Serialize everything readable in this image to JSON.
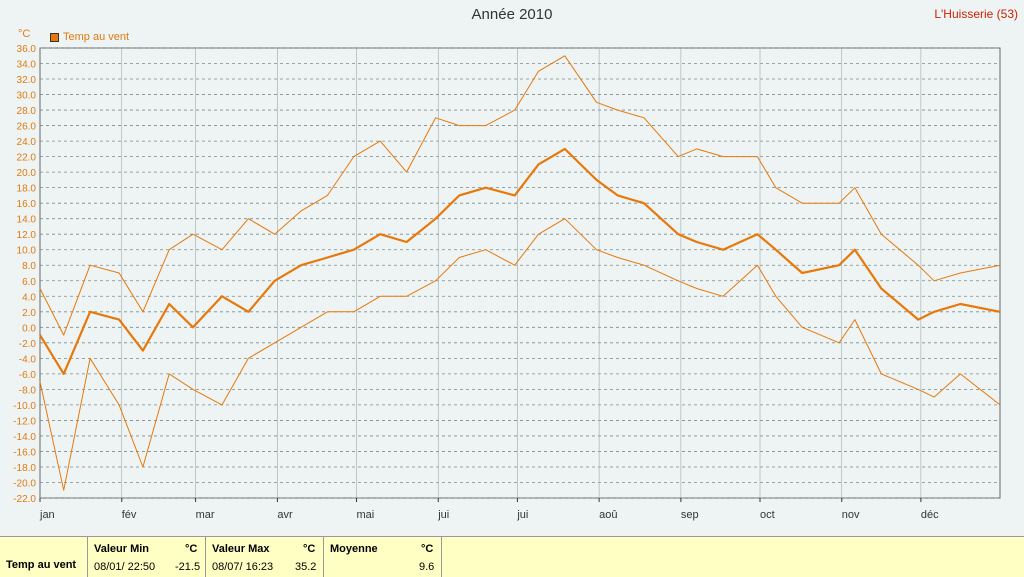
{
  "header": {
    "title": "Année 2010",
    "station": "L'Huisserie (53)",
    "unit": "°C"
  },
  "legend": {
    "label": "Temp au vent",
    "color": "#e8780a"
  },
  "chart_data": {
    "type": "line",
    "title": "Année 2010",
    "ylabel": "°C",
    "ylim": [
      -22,
      36
    ],
    "yticks": [
      "36.0",
      "34.0",
      "32.0",
      "30.0",
      "28.0",
      "26.0",
      "24.0",
      "22.0",
      "20.0",
      "18.0",
      "16.0",
      "14.0",
      "12.0",
      "10.0",
      "8.0",
      "6.0",
      "4.0",
      "2.0",
      "0.0",
      "-2.0",
      "-4.0",
      "-6.0",
      "-8.0",
      "-10.0",
      "-12.0",
      "-14.0",
      "-16.0",
      "-18.0",
      "-20.0",
      "-22.0"
    ],
    "months": [
      "jan",
      "fév",
      "mar",
      "avr",
      "mai",
      "jui",
      "jui",
      "aoû",
      "sep",
      "oct",
      "nov",
      "déc"
    ],
    "x_unit": "day of year",
    "xlim": [
      1,
      365
    ],
    "grid": true,
    "legend_position": "top-left",
    "series_mean": {
      "name": "Temp au vent",
      "x": [
        1,
        10,
        20,
        31,
        40,
        50,
        59,
        70,
        80,
        90,
        100,
        110,
        120,
        130,
        140,
        151,
        160,
        170,
        181,
        190,
        200,
        212,
        220,
        230,
        243,
        250,
        260,
        273,
        280,
        290,
        304,
        310,
        320,
        334,
        340,
        350,
        365
      ],
      "values": [
        -1,
        -6,
        2,
        1,
        -3,
        3,
        0,
        4,
        2,
        6,
        8,
        9,
        10,
        12,
        11,
        14,
        17,
        18,
        17,
        21,
        23,
        19,
        17,
        16,
        12,
        11,
        10,
        12,
        10,
        7,
        8,
        10,
        5,
        1,
        2,
        3,
        2
      ]
    },
    "series_max": {
      "name": "",
      "x": [
        1,
        10,
        20,
        31,
        40,
        50,
        59,
        70,
        80,
        90,
        100,
        110,
        120,
        130,
        140,
        151,
        160,
        170,
        181,
        190,
        200,
        212,
        220,
        230,
        243,
        250,
        260,
        273,
        280,
        290,
        304,
        310,
        320,
        334,
        340,
        350,
        365
      ],
      "values": [
        5,
        -1,
        8,
        7,
        2,
        10,
        12,
        10,
        14,
        12,
        15,
        17,
        22,
        24,
        20,
        27,
        26,
        26,
        28,
        33,
        35,
        29,
        28,
        27,
        22,
        23,
        22,
        22,
        18,
        16,
        16,
        18,
        12,
        8,
        6,
        7,
        8
      ]
    },
    "series_min": {
      "name": "",
      "x": [
        1,
        10,
        20,
        31,
        40,
        50,
        59,
        70,
        80,
        90,
        100,
        110,
        120,
        130,
        140,
        151,
        160,
        170,
        181,
        190,
        200,
        212,
        220,
        230,
        243,
        250,
        260,
        273,
        280,
        290,
        304,
        310,
        320,
        334,
        340,
        350,
        365
      ],
      "values": [
        -7,
        -21,
        -4,
        -10,
        -18,
        -6,
        -8,
        -10,
        -4,
        -2,
        0,
        2,
        2,
        4,
        4,
        6,
        9,
        10,
        8,
        12,
        14,
        10,
        9,
        8,
        6,
        5,
        4,
        8,
        4,
        0,
        -2,
        1,
        -6,
        -8,
        -9,
        -6,
        -10
      ]
    }
  },
  "stats": {
    "row_label": "Temp au vent",
    "min": {
      "header": "Valeur Min",
      "unit": "°C",
      "datetime": "08/01/ 22:50",
      "value": "-21.5"
    },
    "max": {
      "header": "Valeur Max",
      "unit": "°C",
      "datetime": "08/07/ 16:23",
      "value": "35.2"
    },
    "avg": {
      "header": "Moyenne",
      "unit": "°C",
      "value": "9.6"
    }
  }
}
